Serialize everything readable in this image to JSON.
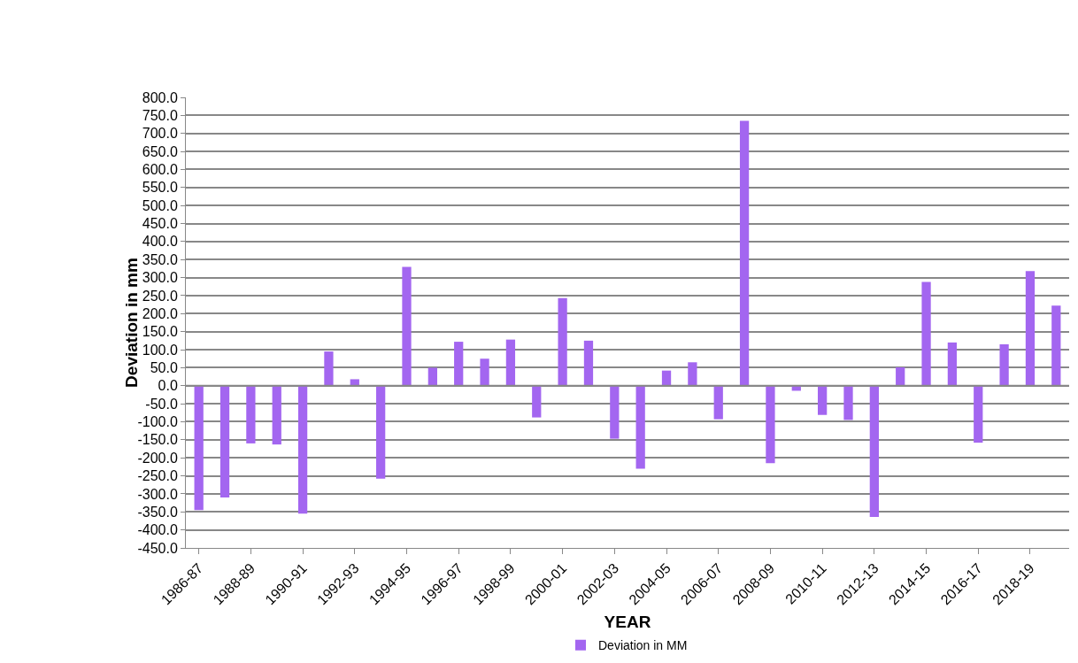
{
  "chart_data": {
    "type": "bar",
    "xlabel": "YEAR",
    "ylabel": "Deviation in mm",
    "categories": [
      "1986-87",
      null,
      "1988-89",
      null,
      "1990-91",
      null,
      "1992-93",
      null,
      "1994-95",
      null,
      "1996-97",
      null,
      "1998-99",
      null,
      "2000-01",
      null,
      "2002-03",
      null,
      "2004-05",
      null,
      "2006-07",
      null,
      "2008-09",
      null,
      "2010-11",
      null,
      "2012-13",
      null,
      "2014-15",
      null,
      "2016-17",
      null,
      "2018-19",
      null
    ],
    "series": [
      {
        "name": "Deviation in MM",
        "color": "#a366f0",
        "values": [
          -345,
          -310,
          -160,
          -163,
          -355,
          95,
          18,
          -258,
          330,
          50,
          122,
          75,
          128,
          -88,
          243,
          125,
          -147,
          -230,
          42,
          65,
          -93,
          735,
          -215,
          -14,
          -81,
          -95,
          -364,
          51,
          288,
          120,
          -158,
          115,
          318,
          222
        ]
      }
    ],
    "ylim": [
      -450,
      800
    ],
    "yticks": [
      {
        "value": -450,
        "label": "-450.0"
      },
      {
        "value": -400,
        "label": "-400.0"
      },
      {
        "value": -350,
        "label": "-350.0"
      },
      {
        "value": -300,
        "label": "-300.0"
      },
      {
        "value": -250,
        "label": "-250.0"
      },
      {
        "value": -200,
        "label": "-200.0"
      },
      {
        "value": -150,
        "label": "-150.0"
      },
      {
        "value": -100,
        "label": "-100.0"
      },
      {
        "value": -50,
        "label": "-50.0"
      },
      {
        "value": 0,
        "label": "0.0"
      },
      {
        "value": 50,
        "label": "50.0"
      },
      {
        "value": 100,
        "label": "100.0"
      },
      {
        "value": 150,
        "label": "150.0"
      },
      {
        "value": 200,
        "label": "200.0"
      },
      {
        "value": 250,
        "label": "250.0"
      },
      {
        "value": 300,
        "label": "300.0"
      },
      {
        "value": 350,
        "label": "350.0"
      },
      {
        "value": 400,
        "label": "400.0"
      },
      {
        "value": 450,
        "label": "450.0"
      },
      {
        "value": 500,
        "label": "500.0"
      },
      {
        "value": 550,
        "label": "550.0"
      },
      {
        "value": 600,
        "label": "600.0"
      },
      {
        "value": 650,
        "label": "650.0"
      },
      {
        "value": 700,
        "label": "700.0"
      },
      {
        "value": 750,
        "label": "750.0"
      },
      {
        "value": 800,
        "label": "800.0"
      }
    ],
    "grid": "y",
    "legend": "bottom"
  }
}
